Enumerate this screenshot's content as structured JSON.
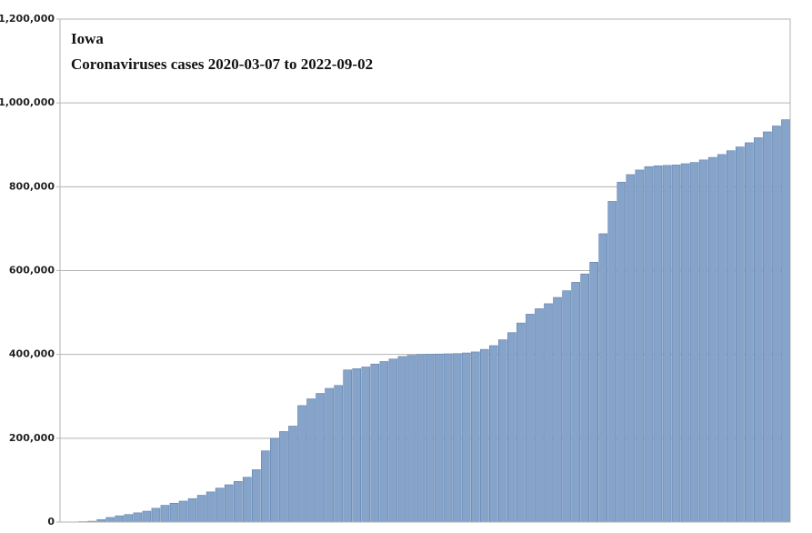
{
  "chart_data": {
    "type": "bar",
    "title": "Iowa",
    "subtitle": "Coronaviruses cases 2020-03-07 to 2022-09-02",
    "categories": [
      null,
      null,
      null,
      null,
      null,
      null,
      null,
      null,
      null,
      null,
      null,
      null,
      null,
      null,
      null,
      null,
      null,
      null,
      null,
      null,
      null,
      null,
      null,
      null,
      null,
      null,
      null,
      null,
      null,
      null,
      null,
      null,
      null,
      null,
      null,
      null,
      null,
      null,
      null,
      null,
      null,
      null,
      null,
      null,
      null,
      null,
      null,
      null,
      null,
      null,
      null,
      null,
      null,
      null,
      null,
      null,
      null,
      null,
      null,
      null,
      null,
      null,
      null,
      null,
      null,
      null,
      null,
      null,
      null,
      null,
      null,
      null,
      null,
      null,
      null,
      null,
      null,
      null,
      null,
      null
    ],
    "values": [
      0,
      0,
      1000,
      2000,
      6000,
      11000,
      15000,
      18000,
      22000,
      26000,
      33000,
      40000,
      45000,
      50000,
      56000,
      64000,
      72000,
      81000,
      89000,
      97000,
      107000,
      125000,
      170000,
      200000,
      216000,
      229000,
      278000,
      294000,
      307000,
      319000,
      326000,
      363000,
      366000,
      370000,
      377000,
      383000,
      389000,
      395000,
      398000,
      400000,
      400500,
      401000,
      401500,
      402000,
      403500,
      406000,
      412000,
      421000,
      435000,
      452000,
      475000,
      496000,
      509000,
      521000,
      536000,
      552000,
      572000,
      592000,
      620000,
      688000,
      765000,
      811000,
      829000,
      840000,
      848000,
      850000,
      851000,
      852000,
      855000,
      858000,
      864000,
      870000,
      877000,
      886000,
      895000,
      905000,
      917000,
      931000,
      945000,
      960000
    ],
    "color": "#86a3c9",
    "ylim": [
      0,
      1200000
    ],
    "yticks": [
      0,
      {
        "value": 200000,
        "label": "200,000"
      },
      {
        "value": 400000,
        "label": "400,000"
      },
      {
        "value": 600000,
        "label": "600,000"
      },
      {
        "value": 800000,
        "label": "800,000"
      },
      {
        "value": 1000000,
        "label": "1,000,000"
      },
      {
        "value": 1200000,
        "label": "1,200,000"
      }
    ],
    "grid": true
  }
}
